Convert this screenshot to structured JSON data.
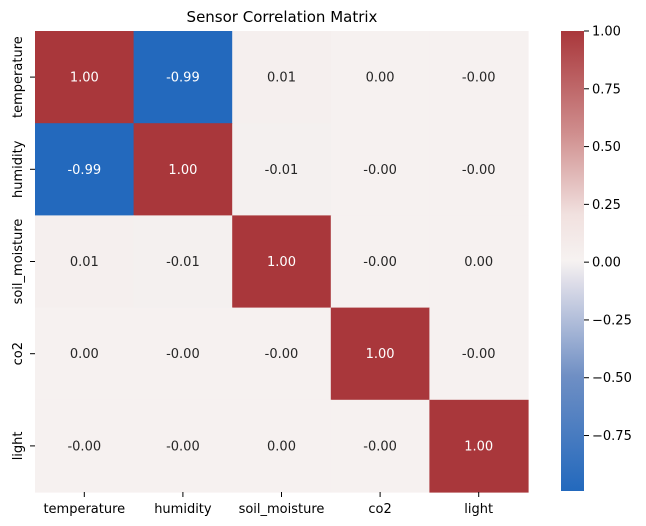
{
  "chart_data": {
    "type": "heatmap",
    "title": "Sensor Correlation Matrix",
    "row_labels": [
      "temperature",
      "humidity",
      "soil_moisture",
      "co2",
      "light"
    ],
    "col_labels": [
      "temperature",
      "humidity",
      "soil_moisture",
      "co2",
      "light"
    ],
    "values": [
      [
        1.0,
        -0.99,
        0.01,
        0.0,
        -0.0
      ],
      [
        -0.99,
        1.0,
        -0.01,
        -0.0,
        -0.0
      ],
      [
        0.01,
        -0.01,
        1.0,
        -0.0,
        0.0
      ],
      [
        0.0,
        -0.0,
        -0.0,
        1.0,
        -0.0
      ],
      [
        -0.0,
        -0.0,
        0.0,
        -0.0,
        1.0
      ]
    ],
    "cell_labels": [
      [
        "1.00",
        "-0.99",
        "0.01",
        "0.00",
        "-0.00"
      ],
      [
        "-0.99",
        "1.00",
        "-0.01",
        "-0.00",
        "-0.00"
      ],
      [
        "0.01",
        "-0.01",
        "1.00",
        "-0.00",
        "0.00"
      ],
      [
        "0.00",
        "-0.00",
        "-0.00",
        "1.00",
        "-0.00"
      ],
      [
        "-0.00",
        "-0.00",
        "0.00",
        "-0.00",
        "1.00"
      ]
    ],
    "colormap": "vlag",
    "vmin": -0.99,
    "vmax": 1.0,
    "colorbar": {
      "ticks": [
        1.0,
        0.75,
        0.5,
        0.25,
        0.0,
        -0.25,
        -0.5,
        -0.75
      ],
      "tick_labels": [
        "1.00",
        "0.75",
        "0.50",
        "0.25",
        "0.00",
        "−0.25",
        "−0.50",
        "−0.75"
      ]
    },
    "colors": {
      "positive": "#a9373b",
      "neutral": "#f6f1f0",
      "negative": "#2369bd"
    }
  }
}
